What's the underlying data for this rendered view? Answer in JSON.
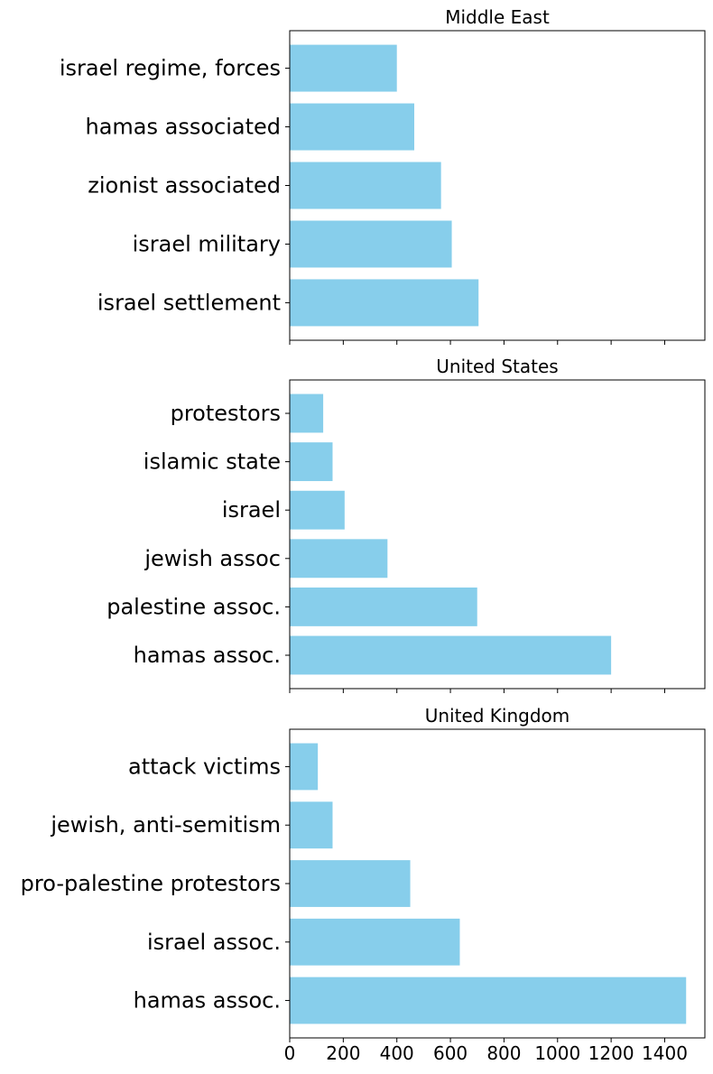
{
  "chart_data": {
    "type": "bar",
    "orientation": "horizontal",
    "bar_color": "#87ceeb",
    "xlim": [
      0,
      1550
    ],
    "x_ticks": [
      0,
      200,
      400,
      600,
      800,
      1000,
      1200,
      1400
    ],
    "x_tick_labels": [
      "0",
      "200",
      "400",
      "600",
      "800",
      "1000",
      "1200",
      "1400"
    ],
    "shared_x": true,
    "panels": [
      {
        "title": "Middle East",
        "categories": [
          "israel settlement",
          "israel military",
          "zionist associated",
          "hamas associated",
          "israel regime, forces"
        ],
        "values": [
          705,
          605,
          565,
          465,
          400
        ]
      },
      {
        "title": "United States",
        "categories": [
          "hamas assoc.",
          "palestine assoc.",
          "jewish assoc",
          "israel",
          "islamic state",
          "protestors"
        ],
        "values": [
          1200,
          700,
          365,
          205,
          160,
          125
        ]
      },
      {
        "title": "United Kingdom",
        "categories": [
          "hamas assoc.",
          "israel assoc.",
          "pro-palestine protestors",
          "jewish, anti-semitism",
          "attack victims"
        ],
        "values": [
          1480,
          635,
          450,
          160,
          105
        ]
      }
    ]
  }
}
